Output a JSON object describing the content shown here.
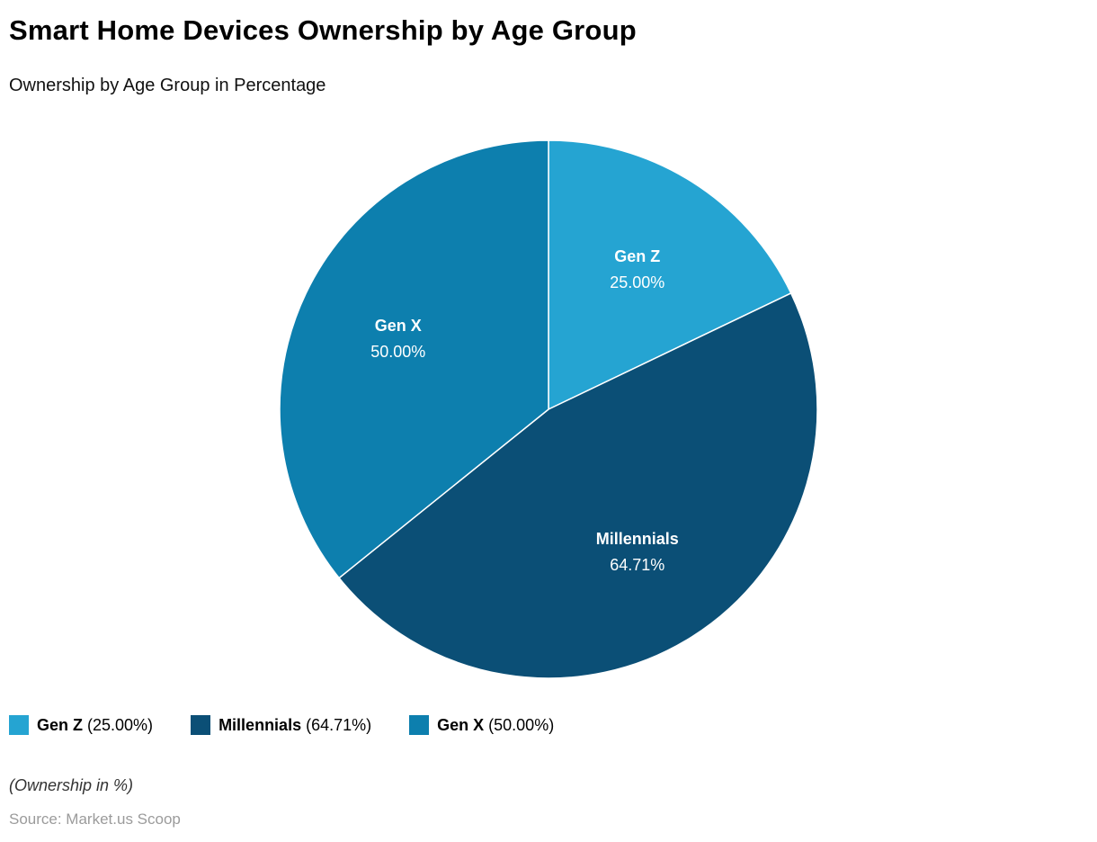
{
  "header": {
    "title": "Smart Home Devices Ownership by Age Group",
    "subtitle": "Ownership by Age Group in Percentage"
  },
  "chart_data": {
    "type": "pie",
    "title": "Smart Home Devices Ownership by Age Group",
    "subtitle": "Ownership by Age Group in Percentage",
    "unit": "%",
    "legend_position": "bottom",
    "start_angle_deg": 0,
    "direction": "clockwise",
    "slices": [
      {
        "label": "Gen Z",
        "value": 25.0,
        "value_label": "25.00%",
        "color": "#25a4d2"
      },
      {
        "label": "Millennials",
        "value": 64.71,
        "value_label": "64.71%",
        "color": "#0b4f76"
      },
      {
        "label": "Gen X",
        "value": 50.0,
        "value_label": "50.00%",
        "color": "#0d7fae"
      }
    ]
  },
  "legend": {
    "items": [
      {
        "label": "Gen Z",
        "value_text": "(25.00%)",
        "color": "#25a4d2"
      },
      {
        "label": "Millennials",
        "value_text": "(64.71%)",
        "color": "#0b4f76"
      },
      {
        "label": "Gen X",
        "value_text": "(50.00%)",
        "color": "#0d7fae"
      }
    ]
  },
  "footer": {
    "unit_note": "(Ownership in %)",
    "source": "Source: Market.us Scoop"
  }
}
